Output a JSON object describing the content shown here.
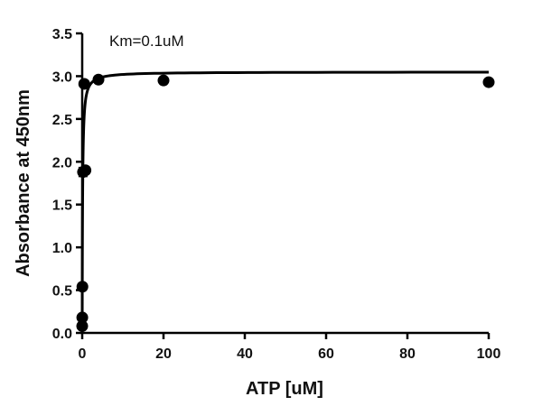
{
  "chart_data": {
    "type": "scatter",
    "xlabel": "ATP [uM]",
    "ylabel": "Absorbance at 450nm",
    "annotation": "Km=0.1uM",
    "xlim": [
      0,
      100
    ],
    "ylim": [
      0,
      3.5
    ],
    "xticks": [
      "0",
      "20",
      "40",
      "60",
      "80",
      "100"
    ],
    "yticks": [
      "0.0",
      "0.5",
      "1.0",
      "1.5",
      "2.0",
      "2.5",
      "3.0",
      "3.5"
    ],
    "grid": false,
    "series": [
      {
        "points": [
          {
            "x": 0,
            "y": 0.08
          },
          {
            "x": 0.02,
            "y": 0.18
          },
          {
            "x": 0.05,
            "y": 0.54
          },
          {
            "x": 0.2,
            "y": 1.88,
            "error": 0.05
          },
          {
            "x": 0.8,
            "y": 1.9
          },
          {
            "x": 0.5,
            "y": 2.91
          },
          {
            "x": 4,
            "y": 2.96
          },
          {
            "x": 20,
            "y": 2.95
          },
          {
            "x": 100,
            "y": 2.93
          }
        ]
      }
    ],
    "fit": {
      "model": "michaelis-menten",
      "vmax": 3.05,
      "km": 0.1
    },
    "colors": {
      "marker": "#000000",
      "axis": "#000000",
      "line": "#000000"
    }
  }
}
